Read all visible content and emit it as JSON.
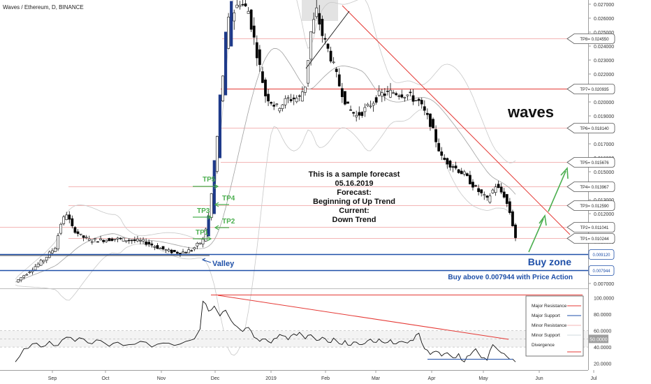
{
  "header": {
    "symbol_title": "Waves / Ethereum, D, BINANCE"
  },
  "watermark": "waves",
  "annotation": {
    "lines": [
      "This is a sample forecast",
      "05.16.2019",
      "Forecast:",
      "Beginning of Up Trend",
      "Current:",
      "Down Trend"
    ]
  },
  "labels": {
    "buy_zone": "Buy zone",
    "buy_above": "Buy above 0.007944 with Price Action",
    "valley": "Valley",
    "tp_markers": [
      "TP1",
      "TP2",
      "TP3",
      "TP4",
      "TP5"
    ]
  },
  "colors": {
    "up_candle": "#ffffff",
    "down_candle": "#000000",
    "resistance": "#e53935",
    "support": "#1e4fa8",
    "target_green": "#4caf50",
    "target_line": "#f3b5b5",
    "bollinger": "#9e9e9e",
    "price_text_blue": "#1e4fa8"
  },
  "chart_data": [
    {
      "type": "candlestick",
      "title": "Waves / Ethereum, D, BINANCE",
      "x_ticks": [
        "Sep",
        "Oct",
        "Nov",
        "Dec",
        "2019",
        "Feb",
        "Mar",
        "Apr",
        "May",
        "Jun",
        "Jul"
      ],
      "y_ticks": [
        "0.027000",
        "0.026000",
        "0.025000",
        "0.024000",
        "0.023000",
        "0.022000",
        "0.021000",
        "0.020000",
        "0.019000",
        "0.018000",
        "0.017000",
        "0.016000",
        "0.015000",
        "0.014000",
        "0.013000",
        "0.012000",
        "0.011000",
        "0.010000",
        "0.009000",
        "0.008000",
        "0.007000"
      ],
      "ylim": [
        0.0067,
        0.0272
      ],
      "price_path": [
        [
          0,
          0.0071
        ],
        [
          5,
          0.0079
        ],
        [
          10,
          0.0087
        ],
        [
          14,
          0.0096
        ],
        [
          16,
          0.0113
        ],
        [
          18,
          0.012
        ],
        [
          20,
          0.011
        ],
        [
          23,
          0.0104
        ],
        [
          26,
          0.0101
        ],
        [
          30,
          0.0101
        ],
        [
          35,
          0.0102
        ],
        [
          40,
          0.0101
        ],
        [
          45,
          0.01
        ],
        [
          50,
          0.0096
        ],
        [
          54,
          0.0093
        ],
        [
          58,
          0.0092
        ],
        [
          62,
          0.0094
        ],
        [
          66,
          0.0101
        ],
        [
          68,
          0.0118
        ],
        [
          70,
          0.015
        ],
        [
          72,
          0.02
        ],
        [
          75,
          0.0258
        ],
        [
          79,
          0.0272
        ],
        [
          82,
          0.0265
        ],
        [
          85,
          0.0235
        ],
        [
          88,
          0.0205
        ],
        [
          92,
          0.0196
        ],
        [
          96,
          0.0202
        ],
        [
          100,
          0.0203
        ],
        [
          102,
          0.0212
        ],
        [
          104,
          0.025
        ],
        [
          106,
          0.0265
        ],
        [
          108,
          0.0248
        ],
        [
          111,
          0.0232
        ],
        [
          114,
          0.0212
        ],
        [
          117,
          0.0196
        ],
        [
          120,
          0.019
        ],
        [
          124,
          0.0196
        ],
        [
          128,
          0.0205
        ],
        [
          133,
          0.0207
        ],
        [
          138,
          0.0205
        ],
        [
          142,
          0.02
        ],
        [
          146,
          0.0185
        ],
        [
          150,
          0.016
        ],
        [
          154,
          0.0154
        ],
        [
          158,
          0.0148
        ],
        [
          162,
          0.0138
        ],
        [
          166,
          0.013
        ],
        [
          169,
          0.014
        ],
        [
          172,
          0.0133
        ],
        [
          174,
          0.0121
        ],
        [
          176,
          0.0103
        ]
      ],
      "resistance_levels": [
        {
          "name": "TP8",
          "value": 0.02455,
          "label": "TP8= 0.024550"
        },
        {
          "name": "TP7",
          "value": 0.020935,
          "label": "TP7= 0.020935"
        },
        {
          "name": "TP6",
          "value": 0.01814,
          "label": "TP6= 0.018140"
        },
        {
          "name": "TP5",
          "value": 0.015676,
          "label": "TP5= 0.015676"
        },
        {
          "name": "TP4",
          "value": 0.013967,
          "label": "TP4= 0.013967"
        },
        {
          "name": "TP3",
          "value": 0.01259,
          "label": "TP3= 0.012590"
        },
        {
          "name": "TP2",
          "value": 0.011041,
          "label": "TP2= 0.011041"
        },
        {
          "name": "TP1",
          "value": 0.010244,
          "label": "TP1= 0.010244"
        }
      ],
      "support_levels": [
        {
          "value": 0.00912,
          "label": "0.009120"
        },
        {
          "value": 0.007944,
          "label": "0.007944"
        }
      ]
    },
    {
      "type": "line",
      "title": "RSI",
      "y_ticks": [
        "100.0000",
        "80.0000",
        "60.0000",
        "50.0000",
        "40.0000",
        "20.0000"
      ],
      "ylim": [
        12,
        104
      ],
      "values": [
        [
          0,
          22
        ],
        [
          3,
          38
        ],
        [
          6,
          44
        ],
        [
          9,
          40
        ],
        [
          12,
          47
        ],
        [
          15,
          42
        ],
        [
          18,
          52
        ],
        [
          21,
          47
        ],
        [
          24,
          50
        ],
        [
          27,
          44
        ],
        [
          30,
          48
        ],
        [
          33,
          41
        ],
        [
          36,
          46
        ],
        [
          40,
          43
        ],
        [
          44,
          47
        ],
        [
          48,
          40
        ],
        [
          52,
          45
        ],
        [
          56,
          42
        ],
        [
          60,
          47
        ],
        [
          63,
          50
        ],
        [
          65,
          62
        ],
        [
          66,
          96
        ],
        [
          68,
          84
        ],
        [
          70,
          90
        ],
        [
          72,
          78
        ],
        [
          74,
          85
        ],
        [
          76,
          72
        ],
        [
          78,
          65
        ],
        [
          80,
          59
        ],
        [
          82,
          64
        ],
        [
          84,
          52
        ],
        [
          86,
          47
        ],
        [
          88,
          50
        ],
        [
          90,
          45
        ],
        [
          92,
          51
        ],
        [
          94,
          54
        ],
        [
          96,
          49
        ],
        [
          98,
          56
        ],
        [
          100,
          58
        ],
        [
          102,
          50
        ],
        [
          104,
          55
        ],
        [
          106,
          48
        ],
        [
          108,
          52
        ],
        [
          110,
          46
        ],
        [
          112,
          51
        ],
        [
          114,
          44
        ],
        [
          116,
          48
        ],
        [
          118,
          42
        ],
        [
          120,
          46
        ],
        [
          122,
          43
        ],
        [
          124,
          48
        ],
        [
          126,
          46
        ],
        [
          128,
          50
        ],
        [
          130,
          45
        ],
        [
          132,
          49
        ],
        [
          134,
          44
        ],
        [
          136,
          47
        ],
        [
          138,
          45
        ],
        [
          140,
          48
        ],
        [
          142,
          57
        ],
        [
          144,
          38
        ],
        [
          146,
          31
        ],
        [
          148,
          35
        ],
        [
          150,
          29
        ],
        [
          152,
          33
        ],
        [
          154,
          27
        ],
        [
          156,
          32
        ],
        [
          158,
          22
        ],
        [
          160,
          30
        ],
        [
          162,
          38
        ],
        [
          164,
          27
        ],
        [
          166,
          24
        ],
        [
          168,
          43
        ],
        [
          170,
          36
        ],
        [
          172,
          32
        ],
        [
          174,
          25
        ],
        [
          176,
          22
        ]
      ],
      "legend": [
        "Major Resistance",
        "Major Support",
        "Minor Resistance",
        "Minor Support",
        "Divergence"
      ]
    }
  ]
}
